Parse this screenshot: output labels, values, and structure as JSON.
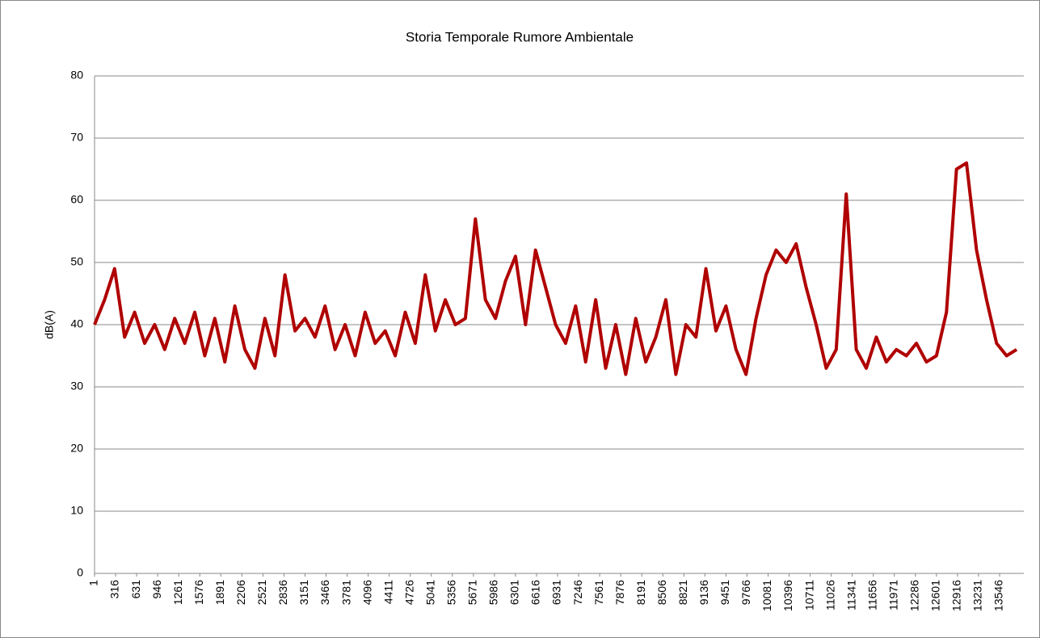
{
  "chart_data": {
    "type": "line",
    "title": "Storia Temporale Rumore Ambientale",
    "y_label": "dB(A)",
    "x": [
      1,
      151,
      301,
      451,
      601,
      751,
      901,
      1051,
      1201,
      1351,
      1501,
      1651,
      1801,
      1951,
      2101,
      2251,
      2401,
      2551,
      2701,
      2851,
      3001,
      3151,
      3301,
      3451,
      3601,
      3751,
      3901,
      4051,
      4201,
      4351,
      4501,
      4651,
      4801,
      4951,
      5101,
      5251,
      5401,
      5551,
      5701,
      5851,
      6001,
      6151,
      6301,
      6451,
      6601,
      6751,
      6901,
      7051,
      7201,
      7351,
      7501,
      7651,
      7801,
      7951,
      8101,
      8251,
      8401,
      8551,
      8701,
      8851,
      9001,
      9151,
      9301,
      9451,
      9601,
      9751,
      9901,
      10051,
      10201,
      10351,
      10501,
      10651,
      10801,
      10951,
      11101,
      11251,
      11401,
      11551,
      11701,
      11851,
      12001,
      12151,
      12301,
      12451,
      12601,
      12751,
      12901,
      13051,
      13201,
      13351,
      13501,
      13651,
      13801
    ],
    "series": [
      {
        "name": "dB(A)",
        "color": "#b00000",
        "values": [
          40,
          44,
          49,
          38,
          42,
          37,
          40,
          36,
          41,
          37,
          42,
          35,
          41,
          34,
          43,
          36,
          33,
          41,
          35,
          48,
          39,
          41,
          38,
          43,
          36,
          40,
          35,
          42,
          37,
          39,
          35,
          42,
          37,
          48,
          39,
          44,
          40,
          41,
          57,
          44,
          41,
          47,
          51,
          40,
          52,
          46,
          40,
          37,
          43,
          34,
          44,
          33,
          40,
          32,
          41,
          34,
          38,
          44,
          32,
          40,
          38,
          49,
          39,
          43,
          36,
          32,
          41,
          48,
          52,
          50,
          53,
          46,
          40,
          33,
          36,
          61,
          36,
          33,
          38,
          34,
          36,
          35,
          37,
          34,
          35,
          42,
          65,
          66,
          52,
          44,
          37,
          35,
          36
        ]
      }
    ],
    "xlim": [
      1,
      13909
    ],
    "xticks": [
      1,
      316,
      631,
      946,
      1261,
      1576,
      1891,
      2206,
      2521,
      2836,
      3151,
      3466,
      3781,
      4096,
      4411,
      4726,
      5041,
      5356,
      5671,
      5986,
      6301,
      6616,
      6931,
      7246,
      7561,
      7876,
      8191,
      8506,
      8821,
      9136,
      9451,
      9766,
      10081,
      10396,
      10711,
      11026,
      11341,
      11656,
      11971,
      12286,
      12601,
      12916,
      13231,
      13546
    ],
    "ylim": [
      0,
      80
    ],
    "yticks": [
      0,
      10,
      20,
      30,
      40,
      50,
      60,
      70,
      80
    ],
    "grid": true
  }
}
